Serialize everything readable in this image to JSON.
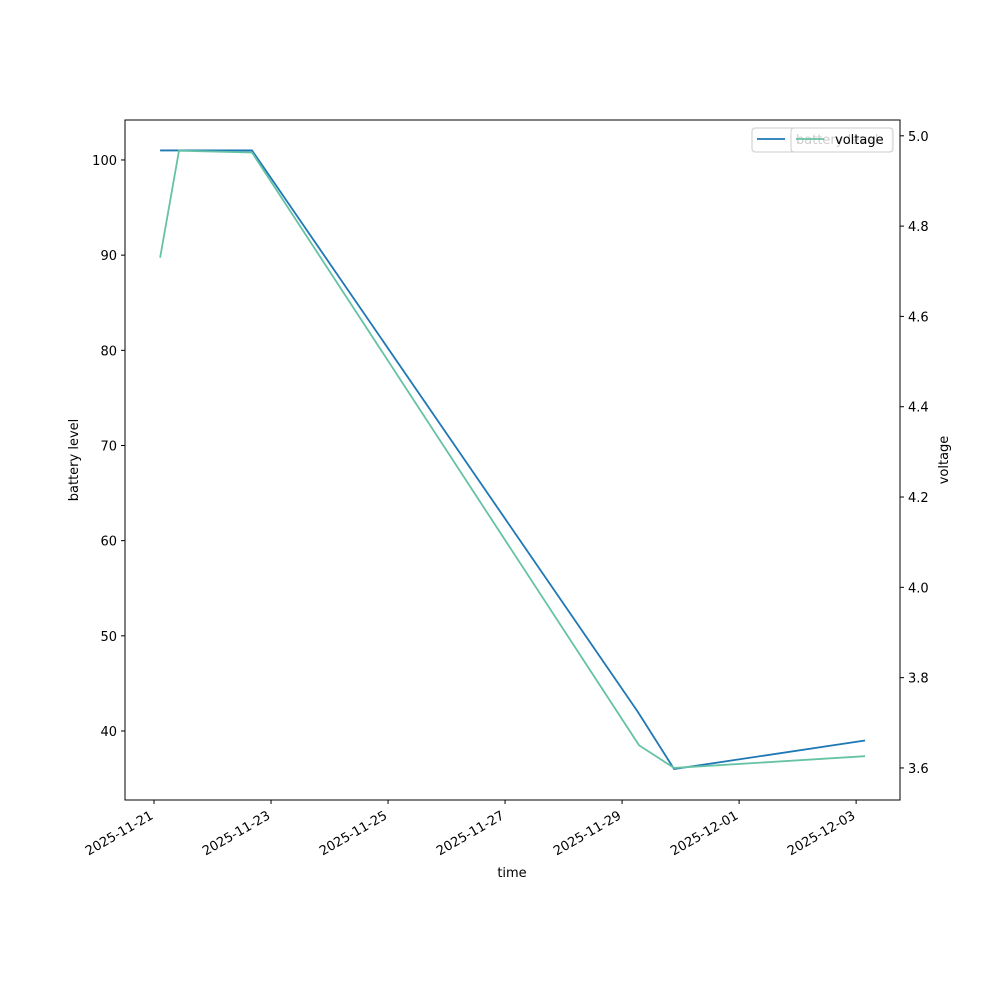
{
  "chart_data": {
    "type": "line",
    "x_label": "time",
    "y_label": "battery level",
    "y2_label": "voltage",
    "xlim": [
      "2025-11-20T12:06",
      "2025-12-03T18:00"
    ],
    "xticks": [
      "2025-11-21",
      "2025-11-23",
      "2025-11-25",
      "2025-11-27",
      "2025-11-29",
      "2025-12-01",
      "2025-12-03"
    ],
    "ylim": [
      32.75,
      104.2
    ],
    "yticks": [
      40,
      50,
      60,
      70,
      80,
      90,
      100
    ],
    "y2lim": [
      3.529,
      5.035
    ],
    "y2ticks": [
      3.6,
      3.8,
      {
        "value": 4,
        "label": "4.0"
      },
      4.2,
      4.4,
      4.6,
      4.8,
      {
        "value": 5,
        "label": "5.0"
      }
    ],
    "series": [
      {
        "name": "battery level",
        "color": "#1f77b4",
        "axis": "y",
        "x": [
          "2025-11-21T02:30",
          "2025-11-22T16:12",
          "2025-11-29T06:30",
          "2025-11-29T21:20",
          "2025-12-03T03:40"
        ],
        "values": [
          101,
          101,
          42,
          36,
          39
        ]
      },
      {
        "name": "voltage",
        "color": "#66c2a5",
        "axis": "y2",
        "x": [
          "2025-11-21T02:30",
          "2025-11-21T10:15",
          "2025-11-22T16:12",
          "2025-11-29T07:00",
          "2025-11-29T21:20",
          "2025-12-03T03:40"
        ],
        "values": [
          4.73,
          4.967,
          4.963,
          3.65,
          3.6,
          3.626
        ]
      }
    ],
    "legend": "upper right"
  }
}
